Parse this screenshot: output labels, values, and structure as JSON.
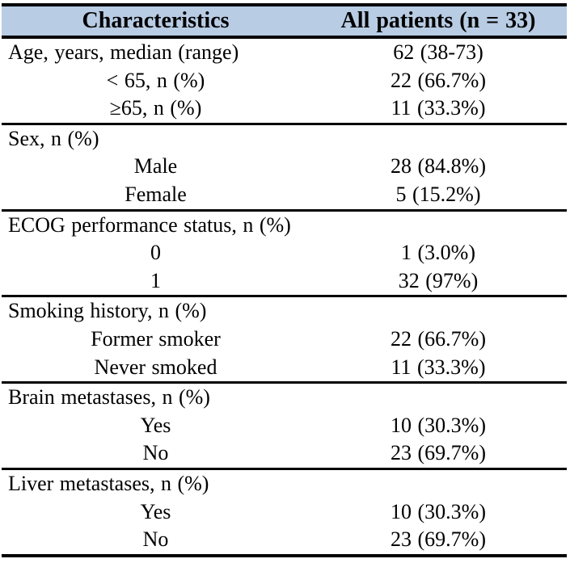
{
  "colors": {
    "header_bg": "#b8cce4",
    "border": "#000000",
    "text": "#000000",
    "page_bg": "#ffffff"
  },
  "table": {
    "columns": [
      "Characteristics",
      "All patients (n = 33)"
    ],
    "rows": [
      {
        "label": "Age, years, median (range)",
        "value": "62 (38-73)",
        "align": "left",
        "section_start": false
      },
      {
        "label": "< 65, n (%)",
        "value": "22 (66.7%)",
        "align": "center",
        "section_start": false
      },
      {
        "label": "≥65, n (%)",
        "value": "11 (33.3%)",
        "align": "center",
        "section_start": false
      },
      {
        "label": "Sex, n (%)",
        "value": "",
        "align": "left",
        "section_start": true
      },
      {
        "label": "Male",
        "value": "28 (84.8%)",
        "align": "center",
        "section_start": false
      },
      {
        "label": "Female",
        "value": "5 (15.2%)",
        "align": "center",
        "section_start": false
      },
      {
        "label": "ECOG performance status, n (%)",
        "value": "",
        "align": "left",
        "section_start": true
      },
      {
        "label": "0",
        "value": "1 (3.0%)",
        "align": "center",
        "section_start": false
      },
      {
        "label": "1",
        "value": "32 (97%)",
        "align": "center",
        "section_start": false
      },
      {
        "label": "Smoking history, n (%)",
        "value": "",
        "align": "left",
        "section_start": true
      },
      {
        "label": "Former smoker",
        "value": "22 (66.7%)",
        "align": "center",
        "section_start": false
      },
      {
        "label": "Never smoked",
        "value": "11 (33.3%)",
        "align": "center",
        "section_start": false
      },
      {
        "label": "Brain metastases, n (%)",
        "value": "",
        "align": "left",
        "section_start": true
      },
      {
        "label": "Yes",
        "value": "10 (30.3%)",
        "align": "center",
        "section_start": false
      },
      {
        "label": "No",
        "value": "23 (69.7%)",
        "align": "center",
        "section_start": false
      },
      {
        "label": "Liver metastases, n (%)",
        "value": "",
        "align": "left",
        "section_start": true
      },
      {
        "label": "Yes",
        "value": "10 (30.3%)",
        "align": "center",
        "section_start": false
      },
      {
        "label": "No",
        "value": "23 (69.7%)",
        "align": "center",
        "section_start": false
      }
    ]
  }
}
